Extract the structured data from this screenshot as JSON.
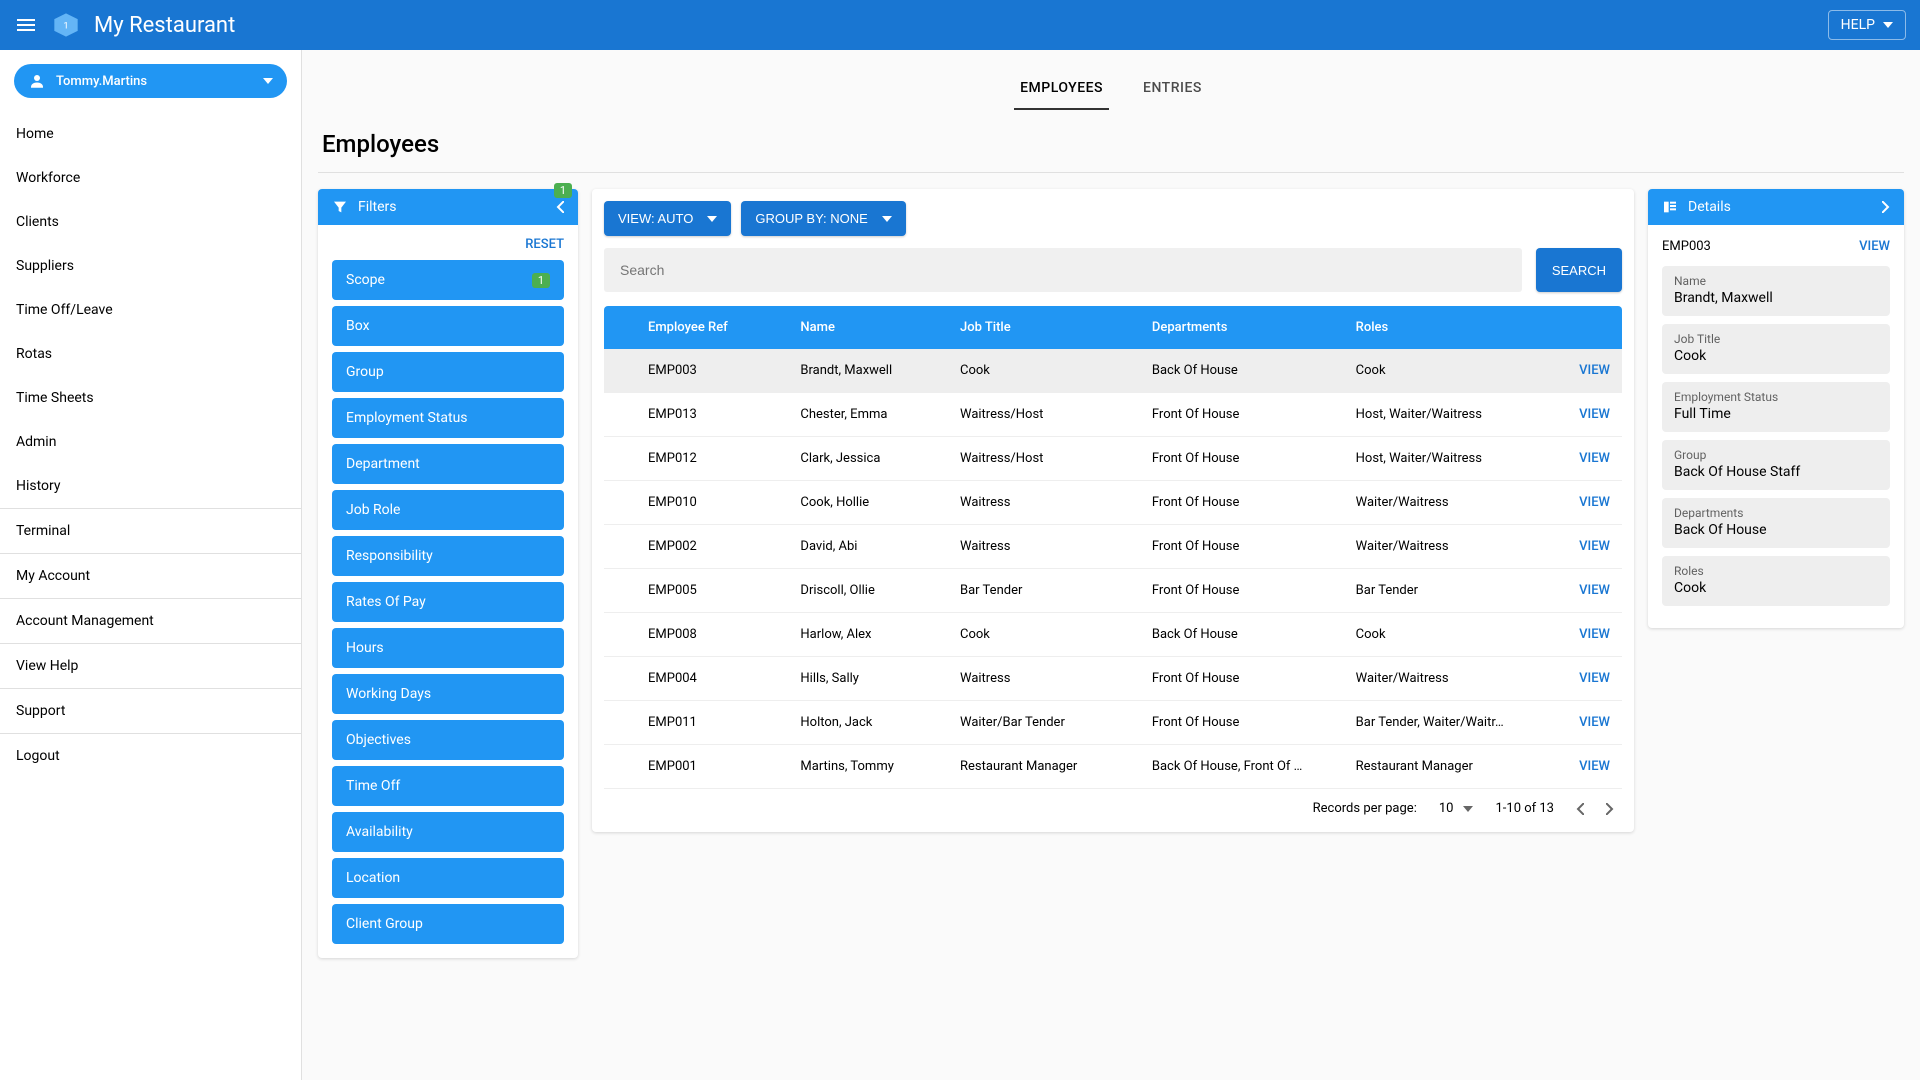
{
  "appbar": {
    "title": "My Restaurant",
    "help": "HELP"
  },
  "user": {
    "name": "Tommy.Martins"
  },
  "nav": {
    "items": [
      "Home",
      "Workforce",
      "Clients",
      "Suppliers",
      "Time Off/Leave",
      "Rotas",
      "Time Sheets",
      "Admin",
      "History"
    ],
    "secondary": [
      "Terminal",
      "My Account",
      "Account Management",
      "View Help",
      "Support",
      "Logout"
    ]
  },
  "tabs": {
    "employees": "EMPLOYEES",
    "entries": "ENTRIES"
  },
  "page": {
    "title": "Employees"
  },
  "filters": {
    "title": "Filters",
    "badge": "1",
    "reset": "RESET",
    "items": [
      {
        "label": "Scope",
        "badge": "1"
      },
      {
        "label": "Box"
      },
      {
        "label": "Group"
      },
      {
        "label": "Employment Status"
      },
      {
        "label": "Department"
      },
      {
        "label": "Job Role"
      },
      {
        "label": "Responsibility"
      },
      {
        "label": "Rates Of Pay"
      },
      {
        "label": "Hours"
      },
      {
        "label": "Working Days"
      },
      {
        "label": "Objectives"
      },
      {
        "label": "Time Off"
      },
      {
        "label": "Availability"
      },
      {
        "label": "Location"
      },
      {
        "label": "Client Group"
      }
    ]
  },
  "controls": {
    "view": "VIEW: AUTO",
    "group": "GROUP BY: NONE"
  },
  "search": {
    "placeholder": "Search",
    "button": "SEARCH"
  },
  "table": {
    "columns": [
      "Employee Ref",
      "Name",
      "Job Title",
      "Departments",
      "Roles",
      ""
    ],
    "viewLabel": "VIEW",
    "rows": [
      {
        "ref": "EMP003",
        "name": "Brandt, Maxwell",
        "job": "Cook",
        "dept": "Back Of House",
        "roles": "Cook",
        "selected": true
      },
      {
        "ref": "EMP013",
        "name": "Chester, Emma",
        "job": "Waitress/Host",
        "dept": "Front Of House",
        "roles": "Host, Waiter/Waitress"
      },
      {
        "ref": "EMP012",
        "name": "Clark, Jessica",
        "job": "Waitress/Host",
        "dept": "Front Of House",
        "roles": "Host, Waiter/Waitress"
      },
      {
        "ref": "EMP010",
        "name": "Cook, Hollie",
        "job": "Waitress",
        "dept": "Front Of House",
        "roles": "Waiter/Waitress"
      },
      {
        "ref": "EMP002",
        "name": "David, Abi",
        "job": "Waitress",
        "dept": "Front Of House",
        "roles": "Waiter/Waitress"
      },
      {
        "ref": "EMP005",
        "name": "Driscoll, Ollie",
        "job": "Bar Tender",
        "dept": "Front Of House",
        "roles": "Bar Tender"
      },
      {
        "ref": "EMP008",
        "name": "Harlow, Alex",
        "job": "Cook",
        "dept": "Back Of House",
        "roles": "Cook"
      },
      {
        "ref": "EMP004",
        "name": "Hills, Sally",
        "job": "Waitress",
        "dept": "Front Of House",
        "roles": "Waiter/Waitress"
      },
      {
        "ref": "EMP011",
        "name": "Holton, Jack",
        "job": "Waiter/Bar Tender",
        "dept": "Front Of House",
        "roles": "Bar Tender, Waiter/Waitr…"
      },
      {
        "ref": "EMP001",
        "name": "Martins, Tommy",
        "job": "Restaurant Manager",
        "dept": "Back Of House, Front Of …",
        "roles": "Restaurant Manager"
      }
    ]
  },
  "pagination": {
    "label": "Records per page:",
    "size": "10",
    "range": "1-10 of 13"
  },
  "details": {
    "title": "Details",
    "ref": "EMP003",
    "viewLabel": "VIEW",
    "fields": [
      {
        "label": "Name",
        "value": "Brandt, Maxwell"
      },
      {
        "label": "Job Title",
        "value": "Cook"
      },
      {
        "label": "Employment Status",
        "value": "Full Time"
      },
      {
        "label": "Group",
        "value": "Back Of House Staff"
      },
      {
        "label": "Departments",
        "value": "Back Of House"
      },
      {
        "label": "Roles",
        "value": "Cook"
      }
    ]
  },
  "colors": {
    "primary": "#1976d2",
    "accent": "#2196f3",
    "badge": "#4caf50"
  }
}
